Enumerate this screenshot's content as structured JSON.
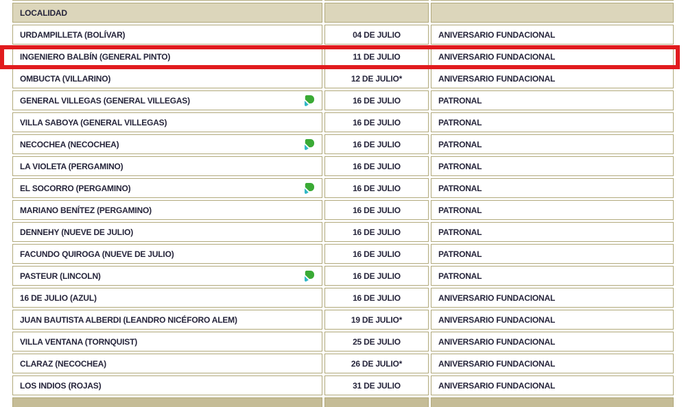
{
  "colors": {
    "header_bg": "#dcd6bb",
    "footer_bg": "#c5bc96",
    "cell_border": "#b1a97b",
    "text": "#26253b",
    "highlight_red": "#e11b1e",
    "icon_green": "#3aaa35",
    "icon_teal": "#31b7c5"
  },
  "table": {
    "header": {
      "localidad": "LOCALIDAD",
      "fecha": "",
      "tipo": ""
    },
    "icon_name": "provincia-logo-icon",
    "rows": [
      {
        "localidad": "URDAMPILLETA (BOLÍVAR)",
        "fecha": "04 DE JULIO",
        "tipo": "ANIVERSARIO FUNDACIONAL",
        "icon": false,
        "highlighted": false
      },
      {
        "localidad": "INGENIERO BALBÍN (GENERAL PINTO)",
        "fecha": "11 DE JULIO",
        "tipo": "ANIVERSARIO FUNDACIONAL",
        "icon": false,
        "highlighted": true
      },
      {
        "localidad": "OMBUCTA (VILLARINO)",
        "fecha": "12 DE JULIO*",
        "tipo": "ANIVERSARIO FUNDACIONAL",
        "icon": false,
        "highlighted": false
      },
      {
        "localidad": "GENERAL VILLEGAS (GENERAL VILLEGAS)",
        "fecha": "16 DE JULIO",
        "tipo": "PATRONAL",
        "icon": true,
        "highlighted": false
      },
      {
        "localidad": "VILLA SABOYA (GENERAL VILLEGAS)",
        "fecha": "16 DE JULIO",
        "tipo": "PATRONAL",
        "icon": false,
        "highlighted": false
      },
      {
        "localidad": "NECOCHEA (NECOCHEA)",
        "fecha": "16 DE JULIO",
        "tipo": "PATRONAL",
        "icon": true,
        "highlighted": false
      },
      {
        "localidad": "LA VIOLETA (PERGAMINO)",
        "fecha": "16 DE JULIO",
        "tipo": "PATRONAL",
        "icon": false,
        "highlighted": false
      },
      {
        "localidad": "EL SOCORRO (PERGAMINO)",
        "fecha": "16 DE JULIO",
        "tipo": "PATRONAL",
        "icon": true,
        "highlighted": false
      },
      {
        "localidad": "MARIANO BENÍTEZ (PERGAMINO)",
        "fecha": "16 DE JULIO",
        "tipo": "PATRONAL",
        "icon": false,
        "highlighted": false
      },
      {
        "localidad": "DENNEHY (NUEVE DE JULIO)",
        "fecha": "16 DE JULIO",
        "tipo": "PATRONAL",
        "icon": false,
        "highlighted": false
      },
      {
        "localidad": "FACUNDO QUIROGA (NUEVE DE JULIO)",
        "fecha": "16 DE JULIO",
        "tipo": "PATRONAL",
        "icon": false,
        "highlighted": false
      },
      {
        "localidad": "PASTEUR (LINCOLN)",
        "fecha": "16 DE JULIO",
        "tipo": "PATRONAL",
        "icon": true,
        "highlighted": false
      },
      {
        "localidad": "16 DE JULIO (AZUL)",
        "fecha": "16 DE JULIO",
        "tipo": "ANIVERSARIO FUNDACIONAL",
        "icon": false,
        "highlighted": false
      },
      {
        "localidad": "JUAN BAUTISTA ALBERDI (LEANDRO NICÉFORO ALEM)",
        "fecha": "19 DE JULIO*",
        "tipo": "ANIVERSARIO FUNDACIONAL",
        "icon": false,
        "highlighted": false
      },
      {
        "localidad": "VILLA VENTANA (TORNQUIST)",
        "fecha": "25 DE JULIO",
        "tipo": "ANIVERSARIO FUNDACIONAL",
        "icon": false,
        "highlighted": false
      },
      {
        "localidad": "CLARAZ (NECOCHEA)",
        "fecha": "26 DE JULIO*",
        "tipo": "ANIVERSARIO FUNDACIONAL",
        "icon": false,
        "highlighted": false
      },
      {
        "localidad": "LOS INDIOS (ROJAS)",
        "fecha": "31 DE JULIO",
        "tipo": "ANIVERSARIO FUNDACIONAL",
        "icon": false,
        "highlighted": false
      }
    ]
  }
}
